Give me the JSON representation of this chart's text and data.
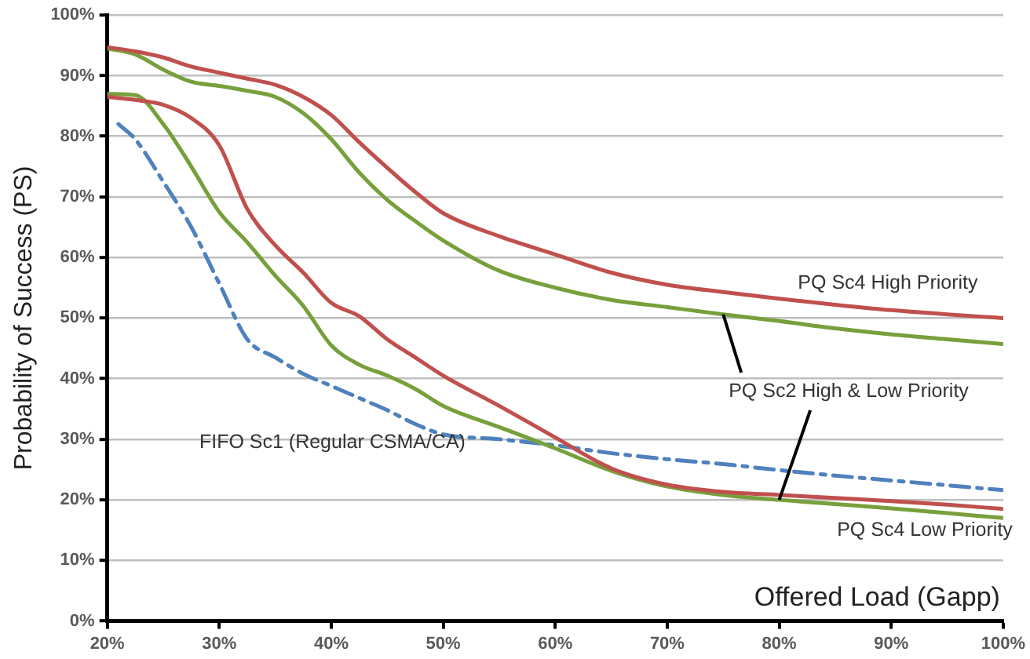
{
  "chart_data": {
    "type": "line",
    "xlabel": "Offered Load (Gapp)",
    "ylabel": "Probability of Success (PS)",
    "x": [
      20,
      22.5,
      25,
      27.5,
      30,
      32.5,
      35,
      37.5,
      40,
      42.5,
      45,
      47.5,
      50,
      55,
      60,
      65,
      70,
      75,
      80,
      85,
      90,
      95,
      100
    ],
    "series": [
      {
        "name": "PQ Sc4 High Priority",
        "color": "#c0504d",
        "line_style": "solid",
        "values": [
          94.7,
          94,
          93,
          91.5,
          90.5,
          89.5,
          88.5,
          86.5,
          83.5,
          79,
          74.8,
          70.8,
          67.3,
          63.5,
          60.5,
          57.5,
          55.5,
          54.3,
          53.2,
          52.2,
          51.3,
          50.6,
          50
        ]
      },
      {
        "name": "PQ Sc2 High & Low Priority",
        "color": "#77a03c",
        "line_style": "solid",
        "values": [
          94.5,
          93.5,
          91,
          89,
          88.3,
          87.5,
          86.5,
          83.8,
          79.5,
          74,
          69.5,
          66,
          62.8,
          57.8,
          55,
          53,
          51.8,
          50.6,
          49.5,
          48.3,
          47.3,
          46.5,
          45.7
        ]
      },
      {
        "name": "PQ Sc4 Low Priority",
        "color": "#c0504d",
        "line_style": "solid",
        "values": [
          86.5,
          86,
          85.2,
          83,
          78.5,
          68,
          62,
          57.5,
          52.5,
          50.3,
          46.5,
          43.5,
          40.5,
          35.5,
          30.3,
          25.2,
          22.5,
          21.3,
          20.8,
          20.3,
          19.8,
          19.2,
          18.5
        ]
      },
      {
        "color": "#77a03c",
        "line_style": "solid",
        "values": [
          87,
          86.8,
          82,
          75,
          67.5,
          62.5,
          57,
          52,
          45.5,
          42.3,
          40.5,
          38.3,
          35.5,
          32,
          28.5,
          24.8,
          22.2,
          20.8,
          20,
          19.3,
          18.6,
          17.8,
          17
        ]
      },
      {
        "name": "FIFO Sc1 (Regular CSMA/CA)",
        "color": "#4f81bd",
        "line_style": "dashed",
        "x": [
          21,
          22.5,
          25,
          27.5,
          30,
          32.5,
          35,
          37.5,
          40,
          42.5,
          45,
          47.5,
          50,
          55,
          60,
          65,
          70,
          75,
          80,
          85,
          90,
          95,
          100
        ],
        "values": [
          82,
          79.5,
          72.5,
          65,
          55.7,
          46.5,
          43.5,
          40.8,
          38.8,
          36.8,
          34.8,
          32.5,
          30.8,
          30,
          29,
          27.7,
          26.7,
          25.9,
          24.9,
          24,
          23.2,
          22.4,
          21.6
        ]
      }
    ],
    "xlim": [
      20,
      100
    ],
    "ylim": [
      0,
      100
    ],
    "xticks": [
      {
        "value": 20,
        "label": "20%"
      },
      {
        "value": 30,
        "label": "30%"
      },
      {
        "value": 40,
        "label": "40%"
      },
      {
        "value": 50,
        "label": "50%"
      },
      {
        "value": 60,
        "label": "60%"
      },
      {
        "value": 70,
        "label": "70%"
      },
      {
        "value": 80,
        "label": "80%"
      },
      {
        "value": 90,
        "label": "90%"
      },
      {
        "value": 100,
        "label": "100%"
      }
    ],
    "yticks": [
      {
        "value": 0,
        "label": "0%"
      },
      {
        "value": 10,
        "label": "10%"
      },
      {
        "value": 20,
        "label": "20%"
      },
      {
        "value": 30,
        "label": "30%"
      },
      {
        "value": 40,
        "label": "40%"
      },
      {
        "value": 50,
        "label": "50%"
      },
      {
        "value": 60,
        "label": "60%"
      },
      {
        "value": 70,
        "label": "70%"
      },
      {
        "value": 80,
        "label": "80%"
      },
      {
        "value": 90,
        "label": "90%"
      },
      {
        "value": 100,
        "label": "100%"
      }
    ],
    "grid": "y",
    "marker": "none"
  }
}
